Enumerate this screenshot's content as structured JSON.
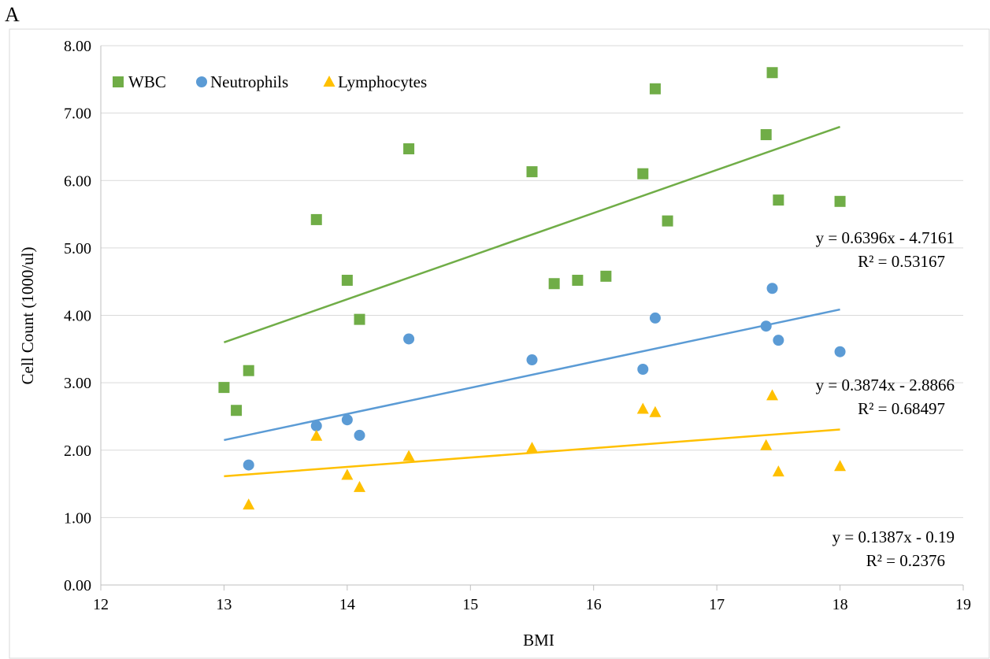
{
  "panel_label": "A",
  "chart_data": {
    "type": "scatter",
    "title": "",
    "xlabel": "BMI",
    "ylabel": "Cell Count (1000/ul)",
    "xlim": [
      12,
      19
    ],
    "ylim": [
      0,
      8
    ],
    "x_ticks": [
      "12",
      "13",
      "14",
      "15",
      "16",
      "17",
      "18",
      "19"
    ],
    "y_ticks": [
      "0.00",
      "1.00",
      "2.00",
      "3.00",
      "4.00",
      "5.00",
      "6.00",
      "7.00",
      "8.00"
    ],
    "grid": "horizontal",
    "legend": "top-left",
    "series": [
      {
        "name": "WBC",
        "marker": "square",
        "color": "#70ad47",
        "x": [
          13.0,
          13.1,
          13.2,
          13.75,
          14.0,
          14.1,
          14.5,
          15.5,
          15.68,
          15.87,
          16.1,
          16.4,
          16.5,
          16.6,
          17.4,
          17.45,
          17.5,
          18.0
        ],
        "y": [
          2.93,
          2.59,
          3.18,
          5.42,
          4.52,
          3.94,
          6.47,
          6.13,
          4.47,
          4.52,
          4.58,
          6.1,
          7.36,
          5.4,
          6.68,
          7.6,
          5.71,
          5.69
        ],
        "trendline": {
          "x_start": 13,
          "x_end": 18,
          "slope": 0.6396,
          "intercept": -4.7161,
          "equation": "y = 0.6396x - 4.7161",
          "r2": "R² = 0.53167"
        }
      },
      {
        "name": "Neutrophils",
        "marker": "circle",
        "color": "#5b9bd5",
        "x": [
          13.2,
          13.75,
          14.0,
          14.1,
          14.5,
          15.5,
          16.4,
          16.5,
          17.4,
          17.45,
          17.5,
          18.0
        ],
        "y": [
          1.78,
          2.36,
          2.45,
          2.22,
          3.65,
          3.34,
          3.2,
          3.96,
          3.84,
          4.4,
          3.63,
          3.46
        ],
        "trendline": {
          "x_start": 13,
          "x_end": 18,
          "slope": 0.3874,
          "intercept": -2.8866,
          "equation": "y = 0.3874x - 2.8866",
          "r2": "R² = 0.68497"
        }
      },
      {
        "name": "Lymphocytes",
        "marker": "triangle",
        "color": "#ffc000",
        "x": [
          13.2,
          13.75,
          14.0,
          14.1,
          14.5,
          15.5,
          16.4,
          16.5,
          17.4,
          17.45,
          17.5,
          18.0
        ],
        "y": [
          1.19,
          2.21,
          1.63,
          1.45,
          1.91,
          2.03,
          2.61,
          2.56,
          2.07,
          2.81,
          1.68,
          1.76
        ],
        "trendline": {
          "x_start": 13,
          "x_end": 18,
          "slope": 0.1387,
          "intercept": -0.19,
          "equation": "y = 0.1387x - 0.19",
          "r2": "R² = 0.2376"
        }
      }
    ]
  }
}
